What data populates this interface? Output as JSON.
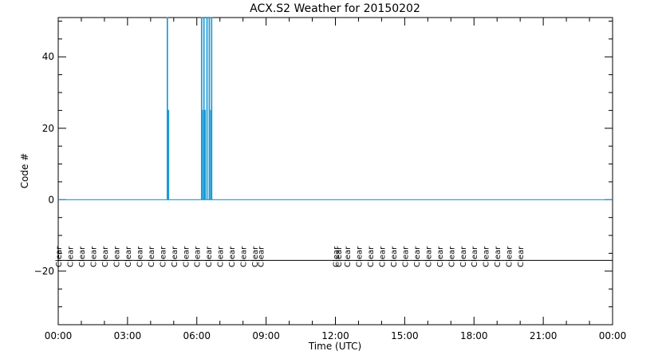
{
  "chart_data": {
    "type": "line",
    "title": "ACX.S2 Weather for 20150202",
    "xlabel": "Time (UTC)",
    "ylabel": "Code #",
    "xlim_hours": [
      0,
      24
    ],
    "ylim": [
      -35,
      51
    ],
    "x_ticks": [
      "00:00",
      "03:00",
      "06:00",
      "09:00",
      "12:00",
      "15:00",
      "18:00",
      "21:00",
      "00:00"
    ],
    "y_ticks": [
      40,
      20,
      0,
      -20
    ],
    "series": [
      {
        "color": "#1a9ad6",
        "points": [
          [
            "00:00",
            0
          ],
          [
            "04:43",
            0
          ],
          [
            "04:43",
            51
          ],
          [
            "04:44",
            51
          ],
          [
            "04:44",
            0
          ],
          [
            "04:46",
            0
          ],
          [
            "04:46",
            25
          ],
          [
            "04:47",
            25
          ],
          [
            "04:47",
            0
          ],
          [
            "06:12",
            0
          ],
          [
            "06:12",
            51
          ],
          [
            "06:13",
            51
          ],
          [
            "06:13",
            0
          ],
          [
            "06:14",
            0
          ],
          [
            "06:14",
            25
          ],
          [
            "06:15",
            25
          ],
          [
            "06:15",
            0
          ],
          [
            "06:18",
            0
          ],
          [
            "06:18",
            51
          ],
          [
            "06:19",
            51
          ],
          [
            "06:19",
            0
          ],
          [
            "06:21",
            0
          ],
          [
            "06:21",
            25
          ],
          [
            "06:22",
            25
          ],
          [
            "06:22",
            0
          ],
          [
            "06:26",
            0
          ],
          [
            "06:26",
            51
          ],
          [
            "06:27",
            51
          ],
          [
            "06:27",
            0
          ],
          [
            "06:32",
            0
          ],
          [
            "06:32",
            51
          ],
          [
            "06:33",
            51
          ],
          [
            "06:33",
            0
          ],
          [
            "06:36",
            0
          ],
          [
            "06:36",
            25
          ],
          [
            "06:37",
            25
          ],
          [
            "06:37",
            0
          ],
          [
            "06:38",
            0
          ],
          [
            "06:38",
            51
          ],
          [
            "06:39",
            51
          ],
          [
            "06:39",
            0
          ],
          [
            "24:00",
            0
          ]
        ]
      }
    ],
    "reference_line_y": -17,
    "annotations": {
      "y_value": -16,
      "items": [
        {
          "time": "00:00",
          "text": "Clear"
        },
        {
          "time": "00:30",
          "text": "Clear"
        },
        {
          "time": "01:00",
          "text": "Clear"
        },
        {
          "time": "01:30",
          "text": "Clear"
        },
        {
          "time": "02:00",
          "text": "Clear"
        },
        {
          "time": "02:30",
          "text": "Clear"
        },
        {
          "time": "03:00",
          "text": "Clear"
        },
        {
          "time": "03:30",
          "text": "Clear"
        },
        {
          "time": "04:00",
          "text": "Clear"
        },
        {
          "time": "04:30",
          "text": "Clear"
        },
        {
          "time": "05:00",
          "text": "Clear"
        },
        {
          "time": "05:30",
          "text": "Clear"
        },
        {
          "time": "06:00",
          "text": "Clear"
        },
        {
          "time": "06:30",
          "text": "Clear"
        },
        {
          "time": "07:00",
          "text": "Clear"
        },
        {
          "time": "07:30",
          "text": "Clear"
        },
        {
          "time": "08:00",
          "text": "Clear"
        },
        {
          "time": "08:30",
          "text": "Clear"
        },
        {
          "time": "08:45",
          "text": "Clear"
        },
        {
          "time": "12:00",
          "text": "Clear"
        },
        {
          "time": "12:07",
          "text": "Clear"
        },
        {
          "time": "12:30",
          "text": "Clear"
        },
        {
          "time": "13:00",
          "text": "Clear"
        },
        {
          "time": "13:30",
          "text": "Clear"
        },
        {
          "time": "14:00",
          "text": "Clear"
        },
        {
          "time": "14:30",
          "text": "Clear"
        },
        {
          "time": "15:00",
          "text": "Clear"
        },
        {
          "time": "15:30",
          "text": "Clear"
        },
        {
          "time": "16:00",
          "text": "Clear"
        },
        {
          "time": "16:30",
          "text": "Clear"
        },
        {
          "time": "17:00",
          "text": "Clear"
        },
        {
          "time": "17:30",
          "text": "Clear"
        },
        {
          "time": "18:00",
          "text": "Clear"
        },
        {
          "time": "18:30",
          "text": "Clear"
        },
        {
          "time": "19:00",
          "text": "Clear"
        },
        {
          "time": "19:30",
          "text": "Clear"
        },
        {
          "time": "20:00",
          "text": "Clear"
        }
      ]
    },
    "grid": false,
    "legend": "none"
  }
}
